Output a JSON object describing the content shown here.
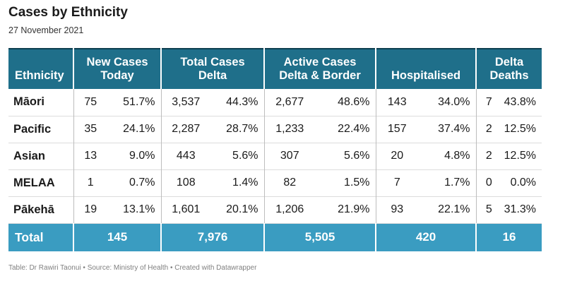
{
  "title": "Cases by Ethnicity",
  "subtitle": "27 November 2021",
  "header": {
    "ethnicity": "Ethnicity",
    "new_cases": [
      "New Cases",
      "Today"
    ],
    "total_cases": [
      "Total Cases",
      "Delta"
    ],
    "active_cases": [
      "Active Cases",
      "Delta & Border"
    ],
    "hospitalised": "Hospitalised",
    "deaths": [
      "Delta",
      "Deaths"
    ]
  },
  "rows": [
    {
      "ethnicity": "Māori",
      "new_n": "75",
      "new_p": "51.7%",
      "total_n": "3,537",
      "total_p": "44.3%",
      "active_n": "2,677",
      "active_p": "48.6%",
      "hosp_n": "143",
      "hosp_p": "34.0%",
      "deaths_n": "7",
      "deaths_p": "43.8%"
    },
    {
      "ethnicity": "Pacific",
      "new_n": "35",
      "new_p": "24.1%",
      "total_n": "2,287",
      "total_p": "28.7%",
      "active_n": "1,233",
      "active_p": "22.4%",
      "hosp_n": "157",
      "hosp_p": "37.4%",
      "deaths_n": "2",
      "deaths_p": "12.5%"
    },
    {
      "ethnicity": "Asian",
      "new_n": "13",
      "new_p": "9.0%",
      "total_n": "443",
      "total_p": "5.6%",
      "active_n": "307",
      "active_p": "5.6%",
      "hosp_n": "20",
      "hosp_p": "4.8%",
      "deaths_n": "2",
      "deaths_p": "12.5%"
    },
    {
      "ethnicity": "MELAA",
      "new_n": "1",
      "new_p": "0.7%",
      "total_n": "108",
      "total_p": "1.4%",
      "active_n": "82",
      "active_p": "1.5%",
      "hosp_n": "7",
      "hosp_p": "1.7%",
      "deaths_n": "0",
      "deaths_p": "0.0%"
    },
    {
      "ethnicity": "Pākehā",
      "new_n": "19",
      "new_p": "13.1%",
      "total_n": "1,601",
      "total_p": "20.1%",
      "active_n": "1,206",
      "active_p": "21.9%",
      "hosp_n": "93",
      "hosp_p": "22.1%",
      "deaths_n": "5",
      "deaths_p": "31.3%"
    }
  ],
  "total": {
    "label": "Total",
    "new": "145",
    "total": "7,976",
    "active": "5,505",
    "hospitalised": "420",
    "deaths": "16"
  },
  "footer": "Table: Dr Rawiri Taonui • Source: Ministry of Health • Created with Datawrapper",
  "colors": {
    "header_bg": "#1f6f8a",
    "total_bg": "#3a9cc1"
  }
}
